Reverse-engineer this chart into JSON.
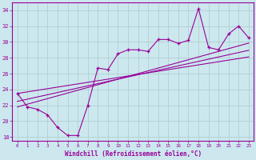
{
  "xlabel": "Windchill (Refroidissement éolien,°C)",
  "background_color": "#cce8ee",
  "line_color": "#990099",
  "grid_color": "#aacccc",
  "x": [
    0,
    1,
    2,
    3,
    4,
    5,
    6,
    7,
    8,
    9,
    10,
    11,
    12,
    13,
    14,
    15,
    16,
    17,
    18,
    19,
    20,
    21,
    22,
    23
  ],
  "y_main": [
    23.5,
    21.8,
    21.5,
    20.8,
    19.2,
    18.2,
    18.2,
    22.0,
    26.7,
    26.5,
    28.5,
    29.0,
    29.0,
    28.8,
    30.3,
    30.3,
    29.8,
    30.2,
    34.2,
    29.3,
    29.0,
    31.0,
    32.0,
    30.5
  ],
  "y_trend1": [
    23.5,
    23.7,
    23.9,
    24.1,
    24.3,
    24.5,
    24.7,
    24.9,
    25.1,
    25.3,
    25.5,
    25.7,
    25.9,
    26.1,
    26.3,
    26.5,
    26.7,
    26.9,
    27.1,
    27.3,
    27.5,
    27.7,
    27.9,
    28.1
  ],
  "y_trend2": [
    21.8,
    22.15,
    22.5,
    22.85,
    23.2,
    23.55,
    23.9,
    24.25,
    24.6,
    24.95,
    25.3,
    25.65,
    26.0,
    26.35,
    26.7,
    27.05,
    27.4,
    27.75,
    28.1,
    28.45,
    28.8,
    29.15,
    29.5,
    29.85
  ],
  "y_trend3": [
    22.5,
    22.78,
    23.06,
    23.34,
    23.62,
    23.9,
    24.18,
    24.46,
    24.74,
    25.02,
    25.3,
    25.58,
    25.86,
    26.14,
    26.42,
    26.7,
    26.98,
    27.26,
    27.54,
    27.82,
    28.1,
    28.38,
    28.66,
    28.94
  ],
  "xlim": [
    -0.5,
    23.5
  ],
  "ylim": [
    17.5,
    35
  ],
  "yticks": [
    18,
    20,
    22,
    24,
    26,
    28,
    30,
    32,
    34
  ],
  "xticks": [
    0,
    1,
    2,
    3,
    4,
    5,
    6,
    7,
    8,
    9,
    10,
    11,
    12,
    13,
    14,
    15,
    16,
    17,
    18,
    19,
    20,
    21,
    22,
    23
  ]
}
